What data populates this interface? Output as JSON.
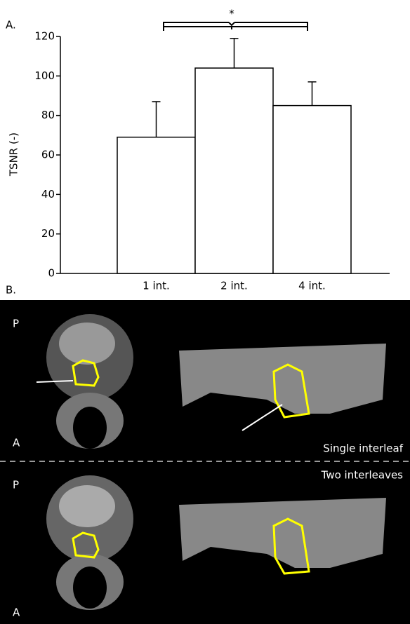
{
  "chart_data": {
    "type": "bar",
    "panel_label": "A.",
    "ylabel": "TSNR (-)",
    "categories": [
      "1 int.",
      "2 int.",
      "4 int."
    ],
    "values": [
      69,
      104,
      85
    ],
    "errors": [
      18,
      15,
      12
    ],
    "color": "#ffffff",
    "ylim": [
      0,
      120
    ],
    "yticks": [
      0,
      20,
      40,
      60,
      80,
      100,
      120
    ],
    "annotations": [
      "*"
    ]
  },
  "panel_b": {
    "panel_label": "B.",
    "posterior": "P",
    "anterior": "A",
    "top_caption": "Single interleaf",
    "bottom_caption": "Two interleaves"
  }
}
